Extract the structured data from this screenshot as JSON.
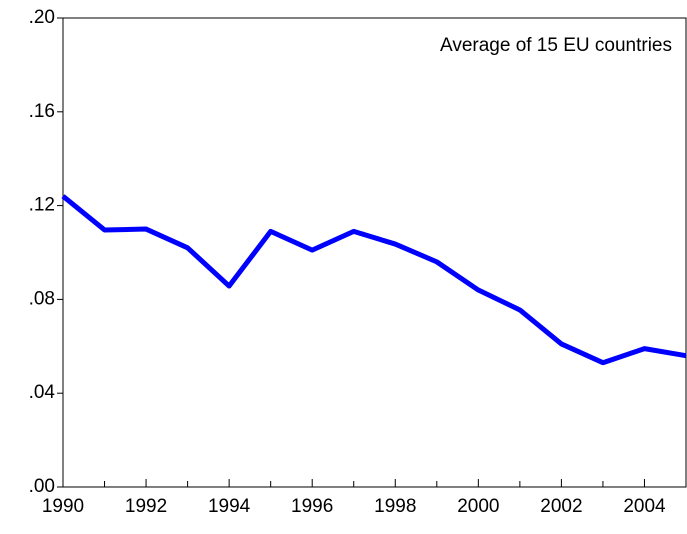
{
  "chart_data": {
    "type": "line",
    "annotation": "Average of 15 EU countries",
    "x": [
      1990,
      1991,
      1992,
      1993,
      1994,
      1995,
      1996,
      1997,
      1998,
      1999,
      2000,
      2001,
      2002,
      2003,
      2004,
      2005
    ],
    "series": [
      {
        "name": "Average of 15 EU countries",
        "color": "#0000ff",
        "values": [
          0.124,
          0.1096,
          0.11,
          0.102,
          0.0857,
          0.109,
          0.101,
          0.109,
          0.1036,
          0.096,
          0.084,
          0.0755,
          0.061,
          0.053,
          0.059,
          0.056
        ]
      }
    ],
    "xlim": [
      1990,
      2005
    ],
    "xticks": [
      1990,
      1992,
      1994,
      1996,
      1998,
      2000,
      2002,
      2004
    ],
    "xminorticks": [
      1991,
      1993,
      1995,
      1997,
      1999,
      2001,
      2003,
      2005
    ],
    "ylim": [
      0,
      0.2
    ],
    "yticks": [
      {
        "value": 0,
        "label": ".00"
      },
      {
        "value": 0.04,
        "label": ".04"
      },
      {
        "value": 0.08,
        "label": ".08"
      },
      {
        "value": 0.12,
        "label": ".12"
      },
      {
        "value": 0.16,
        "label": ".16"
      },
      {
        "value": 0.2,
        "label": ".20"
      }
    ],
    "grid": false
  }
}
